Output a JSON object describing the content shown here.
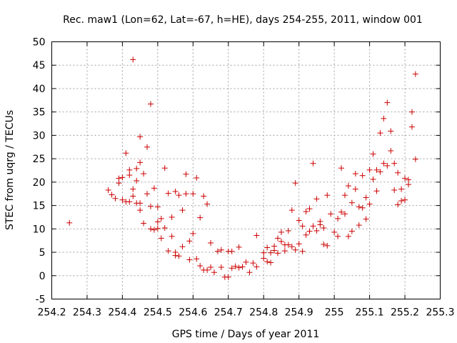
{
  "chart_data": {
    "type": "scatter",
    "title": "Rec. maw1 (Lon=62, Lat=-67, h=HE), days 254-255, 2011, window 001",
    "xlabel": "GPS time / Days of year 2011",
    "ylabel": "STEC from uqrg / TECUs",
    "xlim": [
      254.2,
      255.3
    ],
    "ylim": [
      -5,
      50
    ],
    "xticks": [
      "254.2",
      "254.3",
      "254.4",
      "254.5",
      "254.6",
      "254.7",
      "254.8",
      "254.9",
      "255",
      "255.1",
      "255.2",
      "255.3"
    ],
    "yticks": [
      "-5",
      "0",
      "5",
      "10",
      "15",
      "20",
      "25",
      "30",
      "35",
      "40",
      "45",
      "50"
    ],
    "grid": true,
    "marker": "plus",
    "color": "#cc0000",
    "series": [
      {
        "x": [
          254.25,
          254.36,
          254.37,
          254.38,
          254.39,
          254.39,
          254.4,
          254.4,
          254.41,
          254.41,
          254.42,
          254.42,
          254.42,
          254.43,
          254.43,
          254.43,
          254.44,
          254.44,
          254.44,
          254.45,
          254.45,
          254.45,
          254.45,
          254.46,
          254.46,
          254.47,
          254.47,
          254.48,
          254.48,
          254.48,
          254.49,
          254.49,
          254.5,
          254.5,
          254.5,
          254.51,
          254.51,
          254.52,
          254.52,
          254.53,
          254.53,
          254.54,
          254.54,
          254.55,
          254.55,
          254.55,
          254.56,
          254.56,
          254.57,
          254.57,
          254.58,
          254.58,
          254.59,
          254.59,
          254.6,
          254.6,
          254.61,
          254.61,
          254.62,
          254.62,
          254.63,
          254.63,
          254.64,
          254.64,
          254.65,
          254.65,
          254.66,
          254.67,
          254.68,
          254.68,
          254.69,
          254.7,
          254.7,
          254.71,
          254.71,
          254.72,
          254.73,
          254.73,
          254.74,
          254.75,
          254.76,
          254.77,
          254.78,
          254.78,
          254.8,
          254.8,
          254.81,
          254.81,
          254.82,
          254.82,
          254.83,
          254.83,
          254.84,
          254.84,
          254.85,
          254.85,
          254.86,
          254.86,
          254.87,
          254.87,
          254.88,
          254.88,
          254.89,
          254.89,
          254.9,
          254.9,
          254.91,
          254.91,
          254.92,
          254.92,
          254.93,
          254.93,
          254.94,
          254.94,
          254.95,
          254.95,
          254.96,
          254.96,
          254.97,
          254.97,
          254.98,
          254.98,
          254.99,
          255.0,
          255.01,
          255.01,
          255.02,
          255.02,
          255.03,
          255.03,
          255.04,
          255.04,
          255.05,
          255.05,
          255.06,
          255.06,
          255.07,
          255.07,
          255.08,
          255.08,
          255.09,
          255.09,
          255.1,
          255.1,
          255.11,
          255.11,
          255.12,
          255.12,
          255.13,
          255.13,
          255.14,
          255.14,
          255.15,
          255.15,
          255.16,
          255.16,
          255.17,
          255.17,
          255.18,
          255.18,
          255.19,
          255.19,
          255.2,
          255.2,
          255.21,
          255.21,
          255.22,
          255.22,
          255.23,
          255.23
        ],
        "y": [
          11.3,
          18.3,
          17.3,
          16.5,
          20.8,
          19.8,
          16.2,
          21.0,
          26.2,
          15.8,
          22.6,
          21.5,
          15.8,
          17.0,
          18.5,
          46.2,
          15.5,
          22.9,
          20.3,
          14.0,
          29.7,
          24.2,
          15.5,
          11.2,
          21.8,
          27.5,
          17.5,
          14.8,
          10.0,
          36.7,
          18.7,
          9.8,
          11.5,
          14.7,
          10.1,
          12.2,
          8.0,
          23.0,
          10.2,
          5.3,
          17.6,
          8.4,
          12.5,
          18.0,
          4.3,
          5.0,
          17.2,
          4.2,
          14.0,
          6.2,
          17.5,
          21.7,
          3.4,
          7.4,
          17.5,
          9.0,
          3.6,
          20.9,
          2.1,
          12.4,
          17.0,
          1.2,
          1.2,
          15.3,
          7.0,
          1.8,
          0.7,
          5.2,
          1.8,
          5.5,
          -0.3,
          -0.3,
          5.2,
          1.6,
          5.2,
          2.0,
          1.7,
          6.1,
          1.9,
          2.9,
          0.7,
          2.7,
          8.6,
          1.9,
          4.9,
          3.7,
          6.0,
          3.0,
          4.9,
          2.8,
          6.3,
          5.4,
          4.8,
          8.0,
          7.3,
          9.3,
          5.3,
          6.6,
          6.6,
          9.6,
          6.2,
          14.0,
          5.5,
          19.8,
          6.8,
          11.8,
          10.6,
          5.2,
          13.7,
          8.7,
          9.5,
          14.3,
          10.6,
          24.0,
          9.6,
          16.4,
          10.9,
          11.6,
          10.2,
          6.7,
          17.2,
          6.4,
          13.2,
          9.3,
          12.2,
          8.4,
          13.6,
          23.0,
          17.2,
          13.2,
          8.4,
          19.2,
          15.6,
          9.5,
          18.5,
          21.8,
          14.7,
          10.8,
          21.4,
          14.5,
          16.7,
          12.1,
          22.6,
          15.3,
          26.0,
          20.6,
          22.6,
          18.1,
          22.2,
          30.5,
          24.0,
          33.6,
          37.0,
          23.5,
          30.9,
          26.7,
          24.0,
          18.3,
          15.2,
          22.0,
          16.0,
          18.5,
          16.2,
          20.8,
          20.5,
          19.5,
          31.8,
          35.0,
          24.9,
          43.1
        ]
      }
    ]
  }
}
